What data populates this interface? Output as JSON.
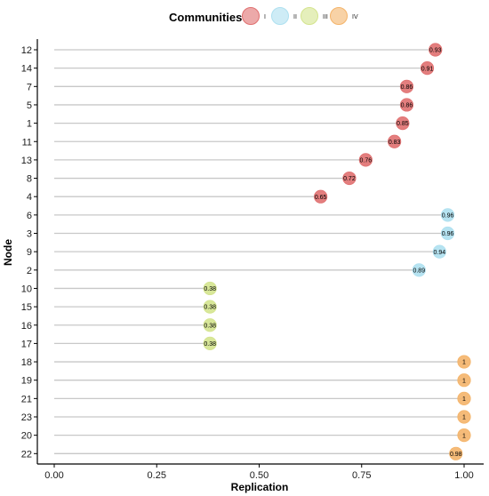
{
  "chart_data": {
    "type": "lollipop",
    "xlabel": "Replication",
    "ylabel": "Node",
    "xlim": [
      0,
      1
    ],
    "x_ticks": [
      "0.00",
      "0.25",
      "0.50",
      "0.75",
      "1.00"
    ],
    "x_tick_values": [
      0,
      0.25,
      0.5,
      0.75,
      1.0
    ],
    "grid": false,
    "legend": {
      "title": "Communities",
      "placement": "top",
      "entries": [
        {
          "name": "I",
          "color": "#E07070"
        },
        {
          "name": "II",
          "color": "#AEE0F0"
        },
        {
          "name": "III",
          "color": "#D4E48E"
        },
        {
          "name": "IV",
          "color": "#F4B46A"
        }
      ]
    },
    "points": [
      {
        "node": "12",
        "value": 0.93,
        "label": "0.93",
        "community": "I"
      },
      {
        "node": "14",
        "value": 0.91,
        "label": "0.91",
        "community": "I"
      },
      {
        "node": "7",
        "value": 0.86,
        "label": "0.86",
        "community": "I"
      },
      {
        "node": "5",
        "value": 0.86,
        "label": "0.86",
        "community": "I"
      },
      {
        "node": "1",
        "value": 0.85,
        "label": "0.85",
        "community": "I"
      },
      {
        "node": "11",
        "value": 0.83,
        "label": "0.83",
        "community": "I"
      },
      {
        "node": "13",
        "value": 0.76,
        "label": "0.76",
        "community": "I"
      },
      {
        "node": "8",
        "value": 0.72,
        "label": "0.72",
        "community": "I"
      },
      {
        "node": "4",
        "value": 0.65,
        "label": "0.65",
        "community": "I"
      },
      {
        "node": "6",
        "value": 0.96,
        "label": "0.96",
        "community": "II"
      },
      {
        "node": "3",
        "value": 0.96,
        "label": "0.96",
        "community": "II"
      },
      {
        "node": "9",
        "value": 0.94,
        "label": "0.94",
        "community": "II"
      },
      {
        "node": "2",
        "value": 0.89,
        "label": "0.89",
        "community": "II"
      },
      {
        "node": "10",
        "value": 0.38,
        "label": "0.38",
        "community": "III"
      },
      {
        "node": "15",
        "value": 0.38,
        "label": "0.38",
        "community": "III"
      },
      {
        "node": "16",
        "value": 0.38,
        "label": "0.38",
        "community": "III"
      },
      {
        "node": "17",
        "value": 0.38,
        "label": "0.38",
        "community": "III"
      },
      {
        "node": "18",
        "value": 1.0,
        "label": "1",
        "community": "IV"
      },
      {
        "node": "19",
        "value": 1.0,
        "label": "1",
        "community": "IV"
      },
      {
        "node": "21",
        "value": 1.0,
        "label": "1",
        "community": "IV"
      },
      {
        "node": "23",
        "value": 1.0,
        "label": "1",
        "community": "IV"
      },
      {
        "node": "20",
        "value": 1.0,
        "label": "1",
        "community": "IV"
      },
      {
        "node": "22",
        "value": 0.98,
        "label": "0.98",
        "community": "IV"
      }
    ]
  }
}
